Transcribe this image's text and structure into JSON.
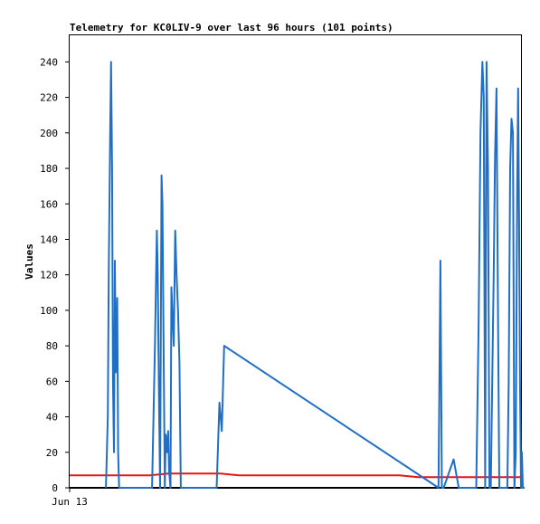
{
  "chart_data": {
    "type": "line",
    "title": "Telemetry for KC0LIV-9 over last 96 hours (101 points)",
    "ylabel": "Values",
    "xlabel": "",
    "ylim": [
      0,
      255
    ],
    "xlim": [
      0,
      96
    ],
    "yticks": [
      0,
      20,
      40,
      60,
      80,
      100,
      120,
      140,
      160,
      180,
      200,
      220,
      240
    ],
    "xticks": [
      {
        "x": 0,
        "label": "Jun 13"
      }
    ],
    "grid": false,
    "legend": "none",
    "series": [
      {
        "color": "#1f6fc7",
        "x": [
          7.7,
          8.1,
          8.3,
          8.6,
          8.8,
          9.0,
          9.2,
          9.4,
          9.6,
          9.8,
          10.1,
          10.3,
          10.5,
          10.6,
          17.5,
          18.1,
          18.5,
          18.7,
          19.0,
          19.2,
          19.5,
          19.7,
          20.0,
          20.2,
          20.4,
          20.7,
          20.9,
          21.1,
          21.4,
          21.6,
          21.8,
          22.1,
          22.4,
          22.7,
          23.0,
          23.3,
          23.6,
          23.9,
          24.1,
          24.4,
          24.7,
          24.9,
          25.2,
          31.2,
          31.8,
          32.3,
          32.8,
          78.3,
          78.7,
          79.0,
          79.4,
          81.5,
          82.6,
          86.3,
          86.8,
          87.2,
          87.6,
          87.9,
          88.2,
          88.5,
          88.8,
          89.1,
          89.4,
          89.7,
          90.0,
          90.3,
          90.6,
          90.9,
          91.2,
          91.5,
          91.8,
          92.1,
          92.9,
          93.2,
          93.5,
          93.8,
          94.1,
          94.4,
          94.7,
          95.0,
          95.2,
          95.4,
          95.6,
          95.8,
          96.0,
          96.2,
          96.4,
          96.6
        ],
        "y": [
          0,
          40,
          120,
          200,
          240,
          180,
          60,
          20,
          128,
          65,
          107,
          20,
          0,
          0,
          0,
          80,
          145,
          120,
          40,
          0,
          176,
          160,
          60,
          0,
          30,
          20,
          32,
          10,
          0,
          113,
          100,
          80,
          145,
          120,
          100,
          70,
          0,
          0,
          0,
          0,
          0,
          0,
          0,
          0,
          48,
          32,
          80,
          0,
          128,
          0,
          0,
          16,
          0,
          0,
          90,
          200,
          240,
          220,
          0,
          240,
          180,
          0,
          0,
          60,
          120,
          187,
          225,
          110,
          0,
          0,
          0,
          0,
          0,
          60,
          180,
          208,
          200,
          0,
          20,
          170,
          225,
          150,
          60,
          0,
          20,
          0,
          0,
          0
        ]
      },
      {
        "color": "#e8160e",
        "x": [
          0,
          17,
          21,
          32,
          36,
          70,
          74,
          96
        ],
        "y": [
          7,
          7,
          8,
          8,
          7,
          7,
          6,
          6
        ]
      },
      {
        "color": "#000000",
        "x": [
          0,
          96
        ],
        "y": [
          0,
          0
        ]
      }
    ]
  }
}
